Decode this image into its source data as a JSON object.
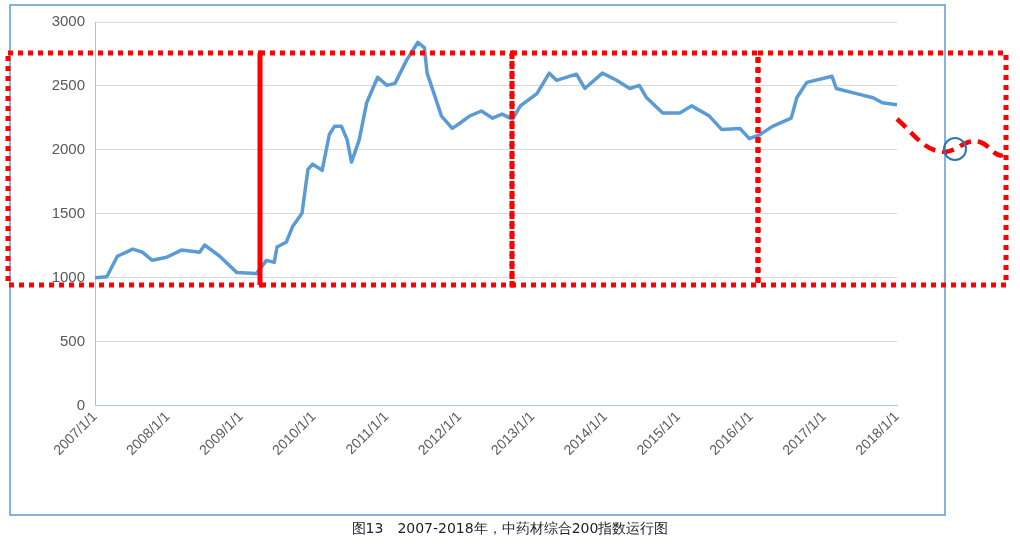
{
  "chart_data": {
    "type": "line",
    "title": "图13　2007-2018年，中药材综合200指数运行图",
    "x": [
      "2007-01-01",
      "2007-03-01",
      "2007-04-23",
      "2007-07-09",
      "2007-08-26",
      "2007-10-15",
      "2007-12-26",
      "2008-03-09",
      "2008-06-09",
      "2008-07-03",
      "2008-09-17",
      "2008-12-12",
      "2009-03-20",
      "2009-05-09",
      "2009-06-17",
      "2009-07-01",
      "2009-08-17",
      "2009-09-17",
      "2009-11-03",
      "2009-12-03",
      "2009-12-26",
      "2010-02-12",
      "2010-03-20",
      "2010-04-15",
      "2010-05-20",
      "2010-06-17",
      "2010-07-09",
      "2010-08-17",
      "2010-09-23",
      "2010-11-17",
      "2011-01-03",
      "2011-02-12",
      "2011-04-12",
      "2011-06-06",
      "2011-07-09",
      "2011-07-23",
      "2011-10-03",
      "2011-11-26",
      "2012-01-03",
      "2012-02-20",
      "2012-04-20",
      "2012-06-15",
      "2012-08-01",
      "2012-09-23",
      "2012-11-01",
      "2013-01-23",
      "2013-03-26",
      "2013-05-01",
      "2013-08-09",
      "2013-09-20",
      "2013-12-17",
      "2014-02-26",
      "2014-05-03",
      "2014-06-20",
      "2014-07-26",
      "2014-08-12",
      "2014-10-15",
      "2015-01-09",
      "2015-03-09",
      "2015-06-06",
      "2015-08-06",
      "2015-11-06",
      "2015-12-23",
      "2016-02-15",
      "2016-04-17",
      "2016-07-20",
      "2016-08-17",
      "2016-10-06",
      "2017-01-20",
      "2017-02-09",
      "2017-03-03",
      "2017-06-12",
      "2017-09-03",
      "2017-10-20",
      "2018-01-01"
    ],
    "series": [
      {
        "color": "#5b9bd5",
        "values": [
          1000,
          1008,
          1168,
          1224,
          1200,
          1136,
          1160,
          1216,
          1200,
          1256,
          1168,
          1040,
          1032,
          1136,
          1120,
          1240,
          1280,
          1400,
          1504,
          1848,
          1888,
          1840,
          2120,
          2184,
          2184,
          2080,
          1904,
          2080,
          2368,
          2568,
          2504,
          2520,
          2704,
          2840,
          2800,
          2600,
          2264,
          2168,
          2208,
          2264,
          2304,
          2248,
          2280,
          2240,
          2344,
          2440,
          2600,
          2544,
          2592,
          2480,
          2600,
          2544,
          2480,
          2504,
          2408,
          2384,
          2288,
          2288,
          2344,
          2264,
          2160,
          2168,
          2088,
          2120,
          2184,
          2248,
          2408,
          2528,
          2568,
          2576,
          2480,
          2440,
          2408,
          2368,
          2352
        ]
      }
    ],
    "xlim": [
      "2007-01-01",
      "2018-01-01"
    ],
    "xticks": [
      {
        "value": "2007-01-01",
        "label": "2007/1/1"
      },
      {
        "value": "2008-01-01",
        "label": "2008/1/1"
      },
      {
        "value": "2009-01-01",
        "label": "2009/1/1"
      },
      {
        "value": "2010-01-01",
        "label": "2010/1/1"
      },
      {
        "value": "2011-01-01",
        "label": "2011/1/1"
      },
      {
        "value": "2012-01-01",
        "label": "2012/1/1"
      },
      {
        "value": "2013-01-01",
        "label": "2013/1/1"
      },
      {
        "value": "2014-01-01",
        "label": "2014/1/1"
      },
      {
        "value": "2015-01-01",
        "label": "2015/1/1"
      },
      {
        "value": "2016-01-01",
        "label": "2016/1/1"
      },
      {
        "value": "2017-01-01",
        "label": "2017/1/1"
      },
      {
        "value": "2018-01-01",
        "label": "2018/1/1"
      }
    ],
    "ylim": [
      0,
      3000
    ],
    "yticks": [
      0,
      500,
      1000,
      1500,
      2000,
      2500,
      3000
    ],
    "grid": "y",
    "legend": false,
    "marker": "none",
    "line_style": "solid"
  }
}
